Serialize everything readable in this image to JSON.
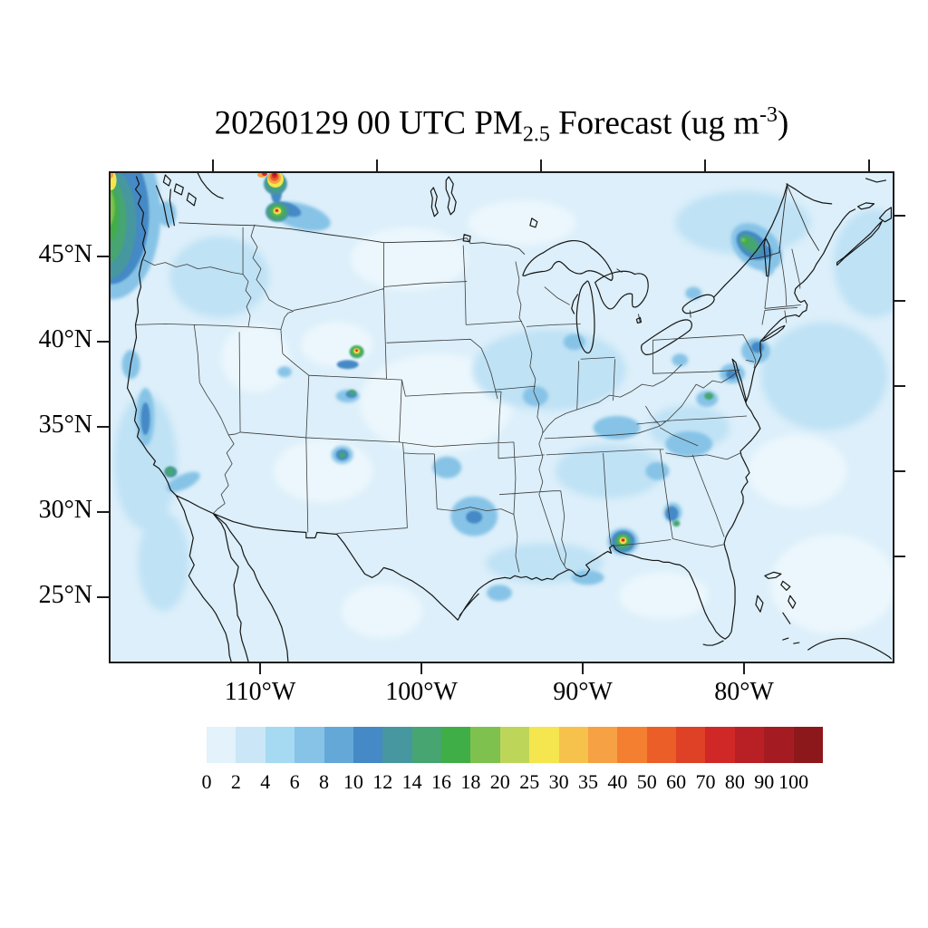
{
  "title": {
    "full_text": "20260129 00 UTC PM2.5 Forecast (ug m-3)",
    "prefix": "20260129 00 UTC PM",
    "subscript": "2.5",
    "middle": " Forecast (ug m",
    "superscript": "-3",
    "suffix": ")"
  },
  "map": {
    "y_axis": {
      "ticks": [
        "45°N",
        "40°N",
        "35°N",
        "30°N",
        "25°N"
      ]
    },
    "x_axis": {
      "ticks": [
        "110°W",
        "100°W",
        "90°W",
        "80°W"
      ]
    }
  },
  "colorbar": {
    "labels": [
      "0",
      "2",
      "4",
      "6",
      "8",
      "10",
      "12",
      "14",
      "16",
      "18",
      "20",
      "25",
      "30",
      "35",
      "40",
      "50",
      "60",
      "70",
      "80",
      "90",
      "100"
    ],
    "colors": [
      "#e3f2fb",
      "#cbe7f7",
      "#a5daf2",
      "#86c3e6",
      "#64a8d8",
      "#4589c6",
      "#4697a0",
      "#47a572",
      "#3fae46",
      "#7ec14f",
      "#bdd65a",
      "#f5e54e",
      "#f6c24c",
      "#f6a144",
      "#f47f31",
      "#ec5e28",
      "#de4126",
      "#d02827",
      "#b92025",
      "#a41c21",
      "#8d181c"
    ]
  },
  "chart_data": {
    "type": "filled_contour_map",
    "title": "20260129 00 UTC PM2.5 Forecast (ug m-3)",
    "variable": "PM2.5 surface concentration forecast",
    "units": "ug m-3",
    "forecast_time": "20260129 00 UTC",
    "region": "Contiguous United States with portions of Canada, Mexico, Cuba and the Bahamas",
    "projection_note": "conic-style map, axis ticks only on frame edges, no interior gridlines",
    "x_axis": {
      "tick_labels": [
        "110°W",
        "100°W",
        "90°W",
        "80°W"
      ],
      "range_approx_deg_west": [
        119,
        71
      ]
    },
    "y_axis": {
      "tick_labels": [
        "45°N",
        "40°N",
        "35°N",
        "30°N",
        "25°N"
      ],
      "range_approx_deg_north": [
        21,
        50
      ]
    },
    "colorbar": {
      "levels": [
        0,
        2,
        4,
        6,
        8,
        10,
        12,
        14,
        16,
        18,
        20,
        25,
        30,
        35,
        40,
        50,
        60,
        70,
        80,
        90,
        100
      ],
      "colors": [
        "#e3f2fb",
        "#cbe7f7",
        "#a5daf2",
        "#86c3e6",
        "#64a8d8",
        "#4589c6",
        "#4697a0",
        "#47a572",
        "#3fae46",
        "#7ec14f",
        "#bdd65a",
        "#f5e54e",
        "#f6c24c",
        "#f6a144",
        "#f47f31",
        "#ec5e28",
        "#de4126",
        "#d02827",
        "#b92025",
        "#a41c21",
        "#8d181c"
      ],
      "extends_above_max": true,
      "position": "horizontal, below map"
    },
    "background_level_range": "0-6 over most land and ocean",
    "hotspots": [
      {
        "location": "Pacific Northwest offshore (WA/OR coast)",
        "peak_level_ug_m3": "20-30, broad plume 8-20"
      },
      {
        "location": "Northwest Montana (top edge)",
        "peak_level_ug_m3": ">100"
      },
      {
        "location": "Western Montana valley",
        "peak_level_ug_m3": "70-100"
      },
      {
        "location": "Southwest Wyoming",
        "peak_level_ug_m3": "60-100"
      },
      {
        "location": "Northwest Colorado",
        "peak_level_ug_m3": "14-18"
      },
      {
        "location": "Northwest New Mexico",
        "peak_level_ug_m3": "12-16"
      },
      {
        "location": "Los Angeles basin",
        "peak_level_ug_m3": "14-18"
      },
      {
        "location": "Adirondacks / northern New York",
        "peak_level_ug_m3": "16-25"
      },
      {
        "location": "Western Virginia",
        "peak_level_ug_m3": "14-18"
      },
      {
        "location": "Central Georgia",
        "peak_level_ug_m3": "14-18"
      },
      {
        "location": "Florida panhandle (Gulf coast)",
        "peak_level_ug_m3": "60-100"
      },
      {
        "location": "East Texas",
        "peak_level_ug_m3": "8-12"
      },
      {
        "location": "Northeast urban corridor (DC-NYC)",
        "peak_level_ug_m3": "8-12"
      }
    ]
  }
}
